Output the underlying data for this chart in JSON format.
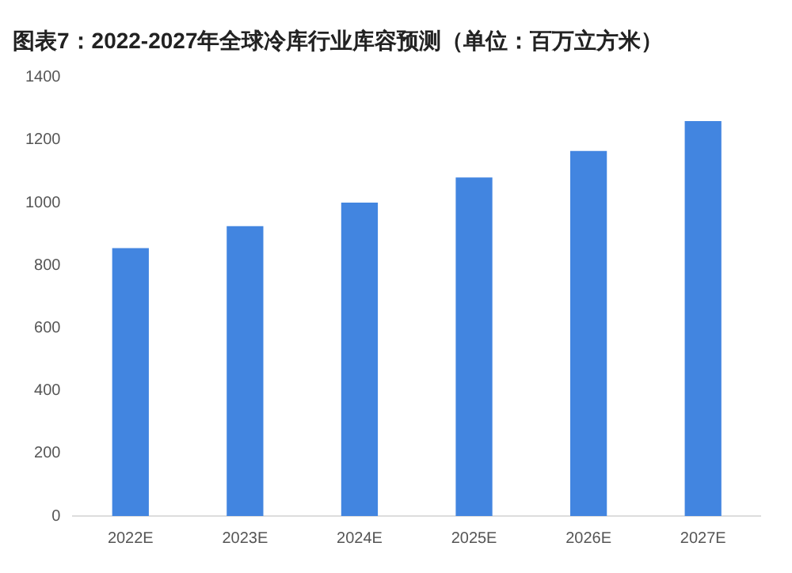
{
  "chart_data": {
    "type": "bar",
    "title": "图表7：2022-2027年全球冷库行业库容预测（单位：百万立方米）",
    "categories": [
      "2022E",
      "2023E",
      "2024E",
      "2025E",
      "2026E",
      "2027E"
    ],
    "values": [
      855,
      925,
      1000,
      1080,
      1165,
      1260
    ],
    "color": "#4285e0",
    "ylim": [
      0,
      1400
    ],
    "yticks": [
      0,
      200,
      400,
      600,
      800,
      1000,
      1200,
      1400
    ],
    "grid": false,
    "legend": false
  }
}
